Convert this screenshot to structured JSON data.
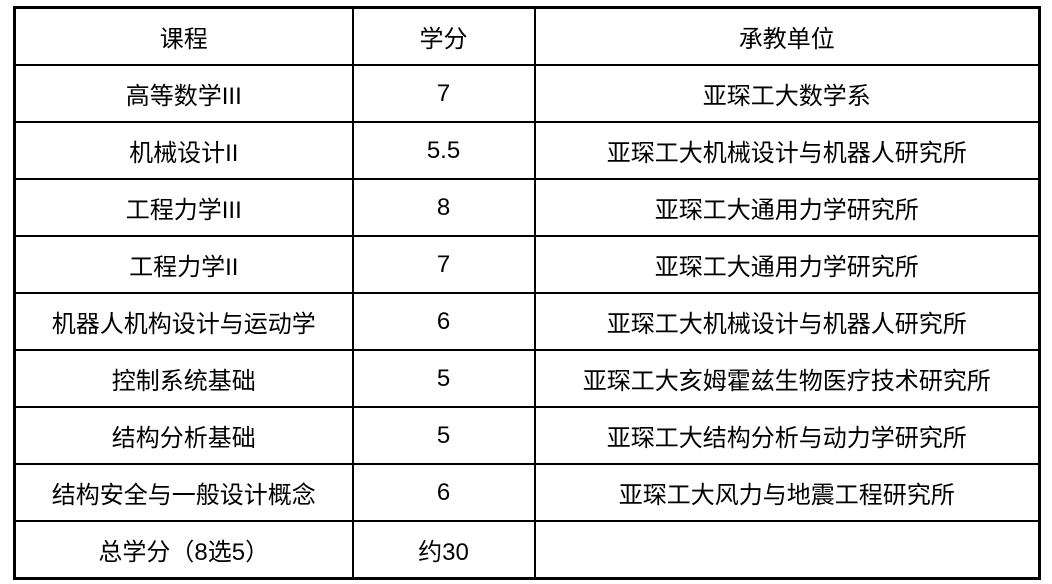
{
  "colors": {
    "background": "#ffffff",
    "border": "#000000",
    "text": "#000000"
  },
  "table": {
    "columns": [
      {
        "key": "course",
        "label": "课程"
      },
      {
        "key": "credits",
        "label": "学分"
      },
      {
        "key": "unit",
        "label": "承教单位"
      }
    ],
    "rows": [
      {
        "course": "高等数学III",
        "credits": "7",
        "unit": "亚琛工大数学系"
      },
      {
        "course": "机械设计II",
        "credits": "5.5",
        "unit": "亚琛工大机械设计与机器人研究所"
      },
      {
        "course": "工程力学III",
        "credits": "8",
        "unit": "亚琛工大通用力学研究所"
      },
      {
        "course": "工程力学II",
        "credits": "7",
        "unit": "亚琛工大通用力学研究所"
      },
      {
        "course": "机器人机构设计与运动学",
        "credits": "6",
        "unit": "亚琛工大机械设计与机器人研究所"
      },
      {
        "course": "控制系统基础",
        "credits": "5",
        "unit": "亚琛工大亥姆霍兹生物医疗技术研究所"
      },
      {
        "course": "结构分析基础",
        "credits": "5",
        "unit": "亚琛工大结构分析与动力学研究所"
      },
      {
        "course": "结构安全与一般设计概念",
        "credits": "6",
        "unit": "亚琛工大风力与地震工程研究所"
      },
      {
        "course": "总学分（8选5）",
        "credits": "约30",
        "unit": ""
      }
    ]
  }
}
